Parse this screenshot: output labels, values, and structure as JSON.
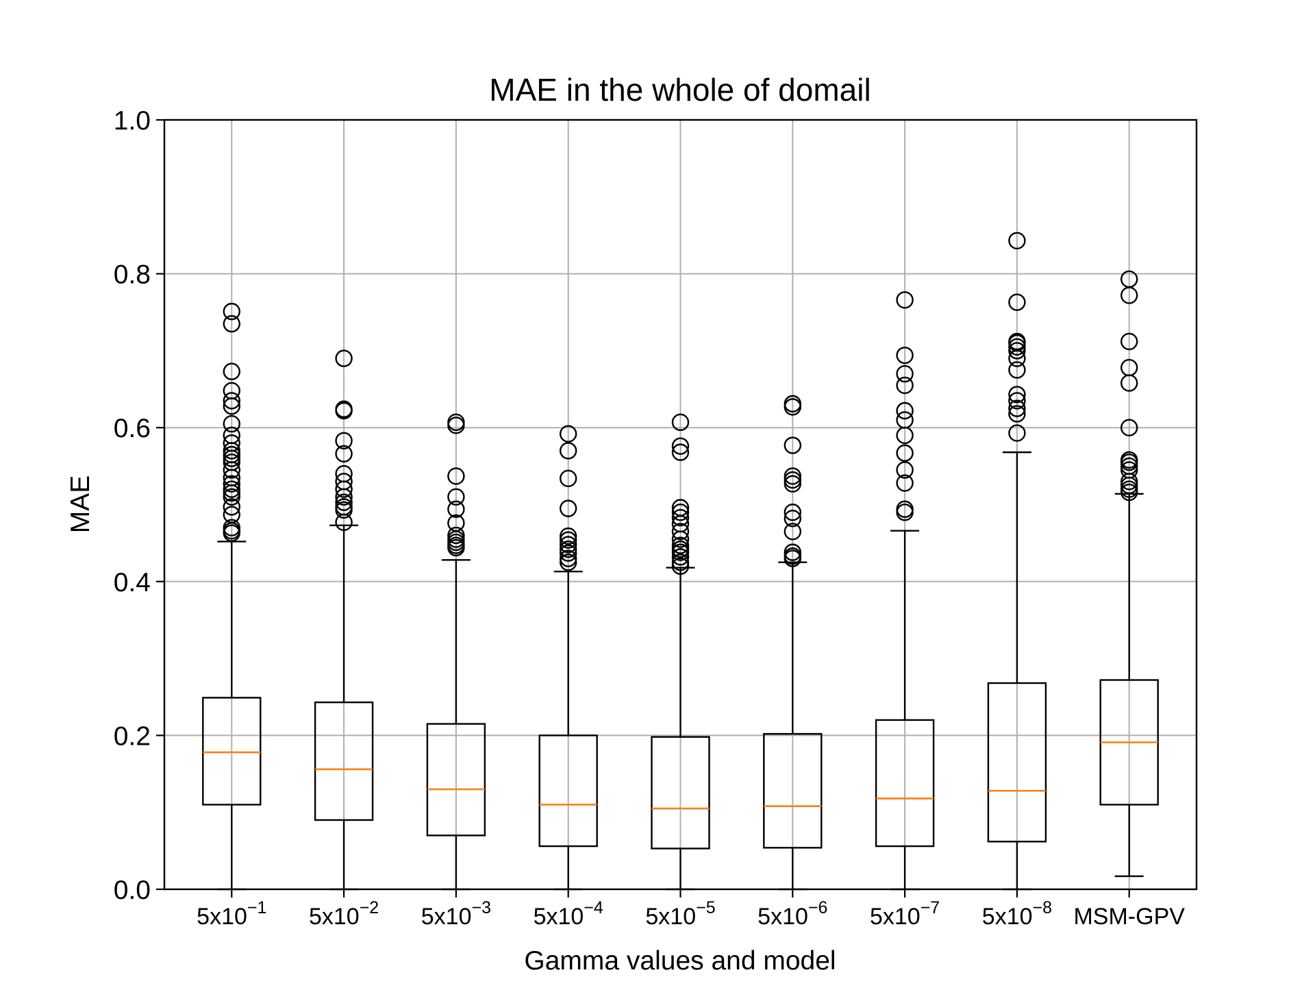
{
  "chart_data": {
    "type": "box",
    "title": "MAE in the whole of domail",
    "xlabel": "Gamma values and model",
    "ylabel": "MAE",
    "ylim": [
      0.0,
      1.0
    ],
    "yticks": [
      "0.0",
      "0.2",
      "0.4",
      "0.6",
      "0.8",
      "1.0"
    ],
    "grid": true,
    "categories": [
      {
        "base": "5x10",
        "exp": "−1"
      },
      {
        "base": "5x10",
        "exp": "−2"
      },
      {
        "base": "5x10",
        "exp": "−3"
      },
      {
        "base": "5x10",
        "exp": "−4"
      },
      {
        "base": "5x10",
        "exp": "−5"
      },
      {
        "base": "5x10",
        "exp": "−6"
      },
      {
        "base": "5x10",
        "exp": "−7"
      },
      {
        "base": "5x10",
        "exp": "−8"
      },
      {
        "base": "MSM-GPV",
        "exp": ""
      }
    ],
    "boxes": [
      {
        "whislo": 0.0,
        "q1": 0.11,
        "med": 0.178,
        "q3": 0.249,
        "whishi": 0.452,
        "fliers": [
          0.463,
          0.466,
          0.47,
          0.487,
          0.497,
          0.51,
          0.515,
          0.52,
          0.527,
          0.535,
          0.545,
          0.555,
          0.56,
          0.565,
          0.57,
          0.58,
          0.59,
          0.605,
          0.628,
          0.635,
          0.648,
          0.673,
          0.735,
          0.751
        ]
      },
      {
        "whislo": 0.0,
        "q1": 0.09,
        "med": 0.156,
        "q3": 0.243,
        "whishi": 0.473,
        "fliers": [
          0.477,
          0.493,
          0.497,
          0.503,
          0.51,
          0.52,
          0.53,
          0.54,
          0.566,
          0.583,
          0.622,
          0.624,
          0.69
        ]
      },
      {
        "whislo": 0.0,
        "q1": 0.07,
        "med": 0.13,
        "q3": 0.215,
        "whishi": 0.428,
        "fliers": [
          0.444,
          0.447,
          0.451,
          0.455,
          0.46,
          0.476,
          0.494,
          0.51,
          0.537,
          0.603,
          0.607
        ]
      },
      {
        "whislo": 0.0,
        "q1": 0.056,
        "med": 0.11,
        "q3": 0.2,
        "whishi": 0.413,
        "fliers": [
          0.425,
          0.43,
          0.437,
          0.442,
          0.448,
          0.454,
          0.459,
          0.495,
          0.534,
          0.57,
          0.592
        ]
      },
      {
        "whislo": 0.0,
        "q1": 0.053,
        "med": 0.105,
        "q3": 0.198,
        "whishi": 0.418,
        "fliers": [
          0.42,
          0.425,
          0.432,
          0.438,
          0.442,
          0.447,
          0.455,
          0.465,
          0.475,
          0.483,
          0.49,
          0.496,
          0.568,
          0.576,
          0.607
        ]
      },
      {
        "whislo": 0.0,
        "q1": 0.054,
        "med": 0.108,
        "q3": 0.202,
        "whishi": 0.425,
        "fliers": [
          0.43,
          0.433,
          0.438,
          0.465,
          0.482,
          0.49,
          0.527,
          0.532,
          0.537,
          0.577,
          0.627,
          0.631
        ]
      },
      {
        "whislo": 0.0,
        "q1": 0.056,
        "med": 0.118,
        "q3": 0.22,
        "whishi": 0.466,
        "fliers": [
          0.49,
          0.494,
          0.528,
          0.545,
          0.567,
          0.59,
          0.61,
          0.622,
          0.655,
          0.67,
          0.694,
          0.766
        ]
      },
      {
        "whislo": 0.0,
        "q1": 0.062,
        "med": 0.128,
        "q3": 0.268,
        "whishi": 0.568,
        "fliers": [
          0.593,
          0.618,
          0.625,
          0.635,
          0.643,
          0.675,
          0.69,
          0.7,
          0.705,
          0.71,
          0.712,
          0.763,
          0.843
        ]
      },
      {
        "whislo": 0.017,
        "q1": 0.11,
        "med": 0.191,
        "q3": 0.272,
        "whishi": 0.514,
        "fliers": [
          0.516,
          0.52,
          0.525,
          0.53,
          0.545,
          0.55,
          0.555,
          0.558,
          0.6,
          0.658,
          0.678,
          0.712,
          0.772,
          0.793
        ]
      }
    ],
    "colors": {
      "box": "#000000",
      "median": "#ff7f0e",
      "grid": "#b0b0b0",
      "flier": "#000000"
    }
  }
}
